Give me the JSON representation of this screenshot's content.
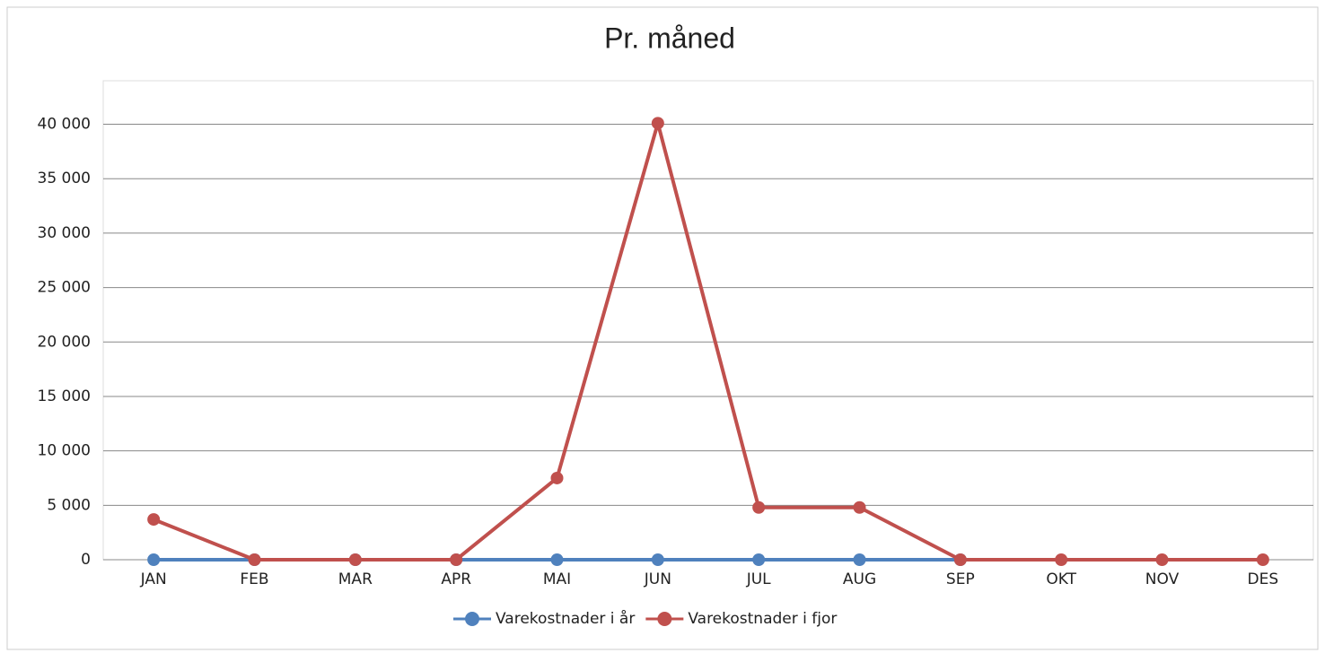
{
  "chart_data": {
    "type": "line",
    "title": "Pr. måned",
    "categories": [
      "JAN",
      "FEB",
      "MAR",
      "APR",
      "MAI",
      "JUN",
      "JUL",
      "AUG",
      "SEP",
      "OKT",
      "NOV",
      "DES"
    ],
    "series": [
      {
        "name": "Varekostnader i år",
        "color": "#4f81bd",
        "values": [
          0,
          0,
          0,
          0,
          0,
          0,
          0,
          0,
          0,
          null,
          null,
          null
        ]
      },
      {
        "name": "Varekostnader i fjor",
        "color": "#c0504d",
        "values": [
          3700,
          0,
          0,
          0,
          7500,
          40100,
          4800,
          4800,
          0,
          0,
          0,
          0
        ]
      }
    ],
    "ylim": [
      0,
      44000
    ],
    "yticks": [
      0,
      {
        "value": 5000,
        "label": "5 000"
      },
      {
        "value": 10000,
        "label": "10 000"
      },
      {
        "value": 15000,
        "label": "15 000"
      },
      {
        "value": 20000,
        "label": "20 000"
      },
      {
        "value": 25000,
        "label": "25 000"
      },
      {
        "value": 30000,
        "label": "30 000"
      },
      {
        "value": 35000,
        "label": "35 000"
      },
      {
        "value": 40000,
        "label": "40 000"
      }
    ],
    "grid": true,
    "legend": "bottom"
  }
}
